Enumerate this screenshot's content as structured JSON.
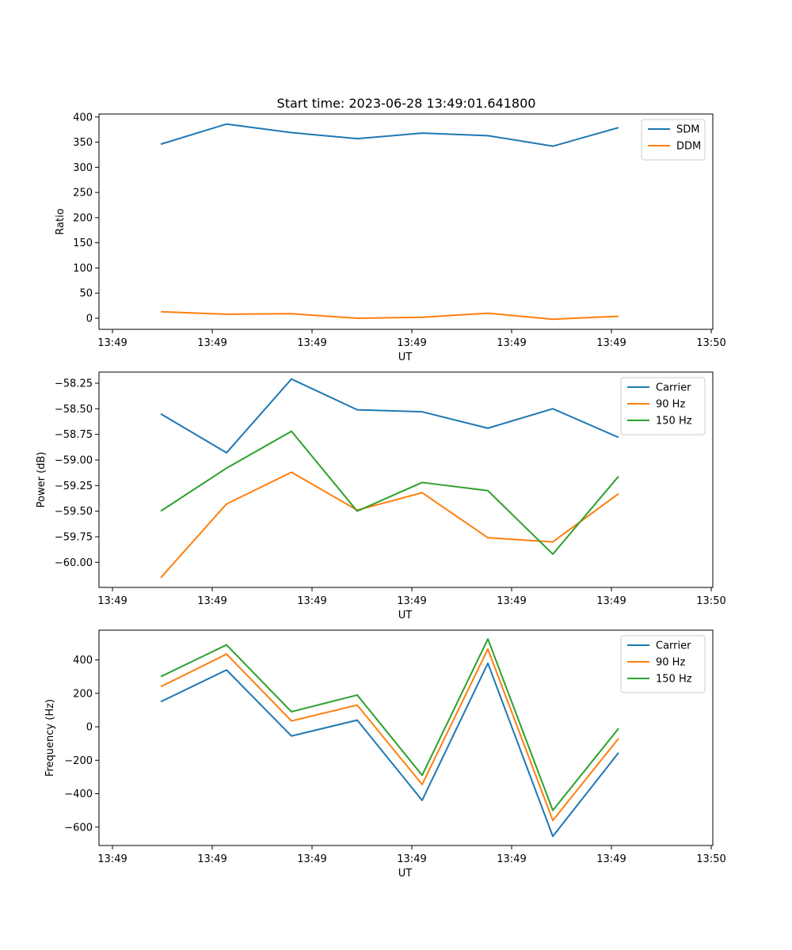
{
  "title": "Start time: 2023-06-28 13:49:01.641800",
  "chart_data": [
    {
      "type": "line",
      "xlabel": "UT",
      "ylabel": "Ratio",
      "x_tick_labels": [
        "13:49",
        "13:49",
        "13:49",
        "13:49",
        "13:49",
        "13:49",
        "13:49",
        "13:50"
      ],
      "y_ticks": [
        0,
        50,
        100,
        150,
        200,
        250,
        300,
        350,
        400
      ],
      "y_tick_labels": [
        "0",
        "50",
        "100",
        "150",
        "200",
        "250",
        "300",
        "350",
        "400"
      ],
      "ylim": [
        -22,
        406
      ],
      "legend": "top-right",
      "grid": false,
      "series": [
        {
          "name": "SDM",
          "color": "#1f77b4",
          "values": [
            346,
            386,
            369,
            357,
            368,
            363,
            342,
            379
          ]
        },
        {
          "name": "DDM",
          "color": "#ff7f0e",
          "values": [
            13,
            8,
            9,
            0,
            2,
            10,
            -2,
            4
          ]
        }
      ]
    },
    {
      "type": "line",
      "xlabel": "UT",
      "ylabel": "Power (dB)",
      "x_tick_labels": [
        "13:49",
        "13:49",
        "13:49",
        "13:49",
        "13:49",
        "13:49",
        "13:49",
        "13:50"
      ],
      "y_ticks": [
        -60.0,
        -59.75,
        -59.5,
        -59.25,
        -59.0,
        -58.75,
        -58.5,
        -58.25
      ],
      "y_tick_labels": [
        "−60.00",
        "−59.75",
        "−59.50",
        "−59.25",
        "−59.00",
        "−58.75",
        "−58.50",
        "−58.25"
      ],
      "ylim": [
        -60.245,
        -58.142
      ],
      "legend": "top-right",
      "grid": false,
      "series": [
        {
          "name": "Carrier",
          "color": "#1f77b4",
          "values": [
            -58.55,
            -58.93,
            -58.21,
            -58.51,
            -58.53,
            -58.69,
            -58.5,
            -58.78
          ]
        },
        {
          "name": "90 Hz",
          "color": "#ff7f0e",
          "values": [
            -60.15,
            -59.43,
            -59.12,
            -59.49,
            -59.32,
            -59.76,
            -59.8,
            -59.33
          ]
        },
        {
          "name": "150 Hz",
          "color": "#2ca02c",
          "values": [
            -59.5,
            -59.08,
            -58.72,
            -59.5,
            -59.22,
            -59.3,
            -59.92,
            -59.16
          ]
        }
      ]
    },
    {
      "type": "line",
      "xlabel": "UT",
      "ylabel": "Frequency (Hz)",
      "x_tick_labels": [
        "13:49",
        "13:49",
        "13:49",
        "13:49",
        "13:49",
        "13:49",
        "13:49",
        "13:50"
      ],
      "y_ticks": [
        -600,
        -400,
        -200,
        0,
        200,
        400
      ],
      "y_tick_labels": [
        "−600",
        "−400",
        "−200",
        "0",
        "200",
        "400"
      ],
      "ylim": [
        -710,
        578
      ],
      "legend": "top-right",
      "grid": false,
      "series": [
        {
          "name": "Carrier",
          "color": "#1f77b4",
          "values": [
            150,
            340,
            -55,
            40,
            -440,
            380,
            -655,
            -155
          ]
        },
        {
          "name": "90 Hz",
          "color": "#ff7f0e",
          "values": [
            240,
            435,
            35,
            130,
            -345,
            465,
            -560,
            -70
          ]
        },
        {
          "name": "150 Hz",
          "color": "#2ca02c",
          "values": [
            300,
            490,
            90,
            190,
            -290,
            525,
            -500,
            -10
          ]
        }
      ]
    }
  ]
}
